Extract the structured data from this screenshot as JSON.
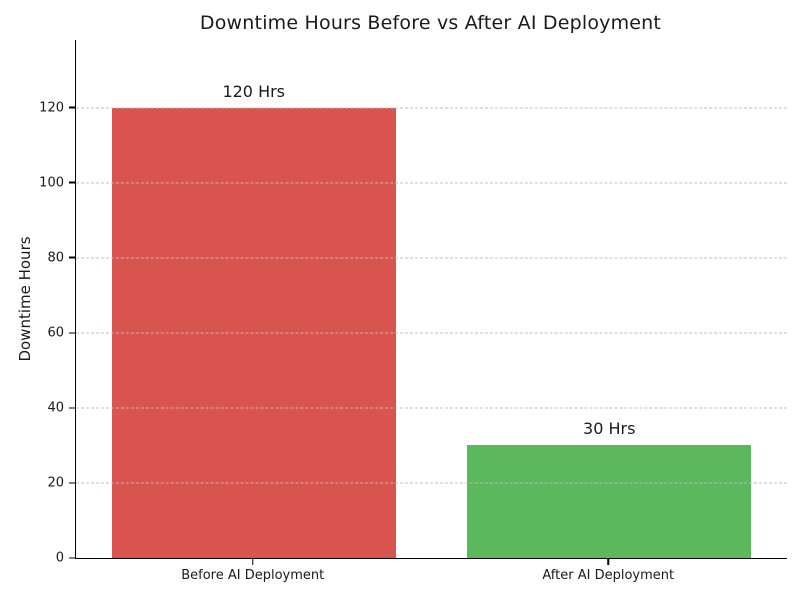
{
  "chart_data": {
    "type": "bar",
    "title": "Downtime Hours Before vs After AI Deployment",
    "categories": [
      "Before AI Deployment",
      "After AI Deployment"
    ],
    "values": [
      120,
      30
    ],
    "bar_labels": [
      "120 Hrs",
      "30 Hrs"
    ],
    "bar_colors": [
      "#d9534f",
      "#5cb85c"
    ],
    "xlabel": "",
    "ylabel": "Downtime Hours",
    "ylim": [
      0,
      138
    ],
    "yticks": [
      0,
      20,
      40,
      60,
      80,
      100,
      120
    ],
    "grid": "horizontal dashed, drawn over bars",
    "grid_color": "#bebebe",
    "spines": [
      "left",
      "bottom"
    ],
    "legend_position": "none",
    "background_color": "#ffffff",
    "text_color": "#1a1a1a"
  }
}
